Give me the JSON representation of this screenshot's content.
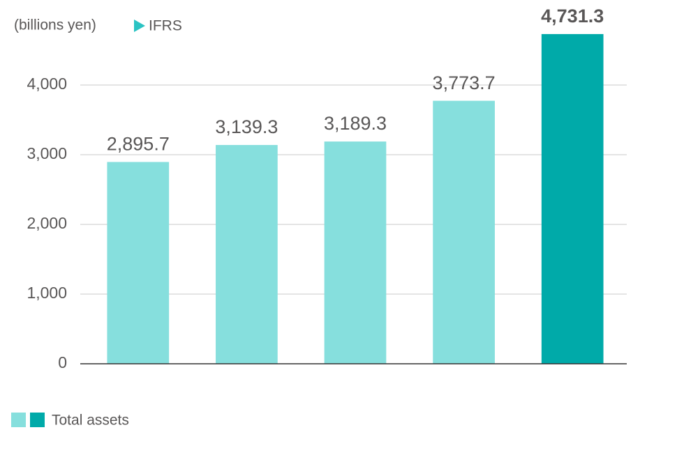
{
  "chart_data": {
    "type": "bar",
    "unit_label": "(billions yen)",
    "annotation": "IFRS",
    "categories": [
      null,
      null,
      null,
      null,
      null
    ],
    "series": [
      {
        "name": "Total assets",
        "color": "#86dfdd",
        "colors": [
          "#86dfdd",
          "#86dfdd",
          "#86dfdd",
          "#86dfdd",
          "#00aaa9"
        ],
        "values": [
          2895.7,
          3139.3,
          3189.3,
          3773.7,
          4731.3
        ],
        "value_labels": [
          "2,895.7",
          "3,139.3",
          "3,189.3",
          "3,773.7",
          "4,731.3"
        ]
      }
    ],
    "ylim": [
      0,
      5000
    ],
    "yticks": [
      0,
      {
        "value": 1000,
        "label": "1,000"
      },
      {
        "value": 2000,
        "label": "2,000"
      },
      {
        "value": 3000,
        "label": "3,000"
      },
      {
        "value": 4000,
        "label": "4,000"
      }
    ],
    "grid": true
  }
}
